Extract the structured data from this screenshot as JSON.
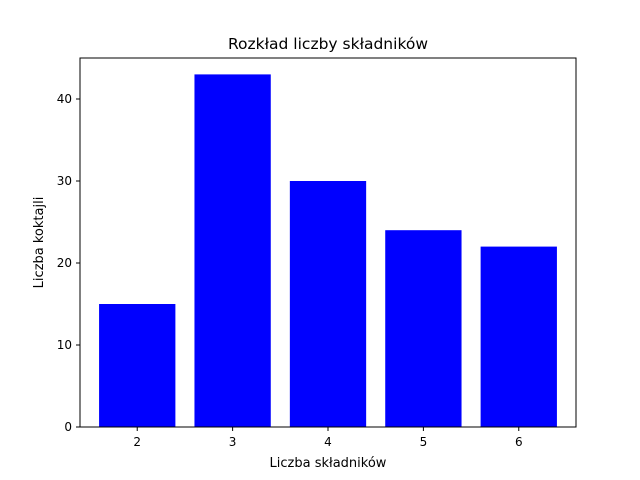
{
  "chart_data": {
    "type": "bar",
    "title": "Rozkład liczby składników",
    "xlabel": "Liczba składników",
    "ylabel": "Liczba koktajli",
    "categories": [
      "2",
      "3",
      "4",
      "5",
      "6"
    ],
    "values": [
      15,
      43,
      30,
      24,
      22
    ],
    "ylim": [
      0,
      45
    ],
    "yticks": [
      0,
      10,
      20,
      30,
      40
    ],
    "bar_color": "#0000ff",
    "grid": false,
    "legend": "none"
  }
}
